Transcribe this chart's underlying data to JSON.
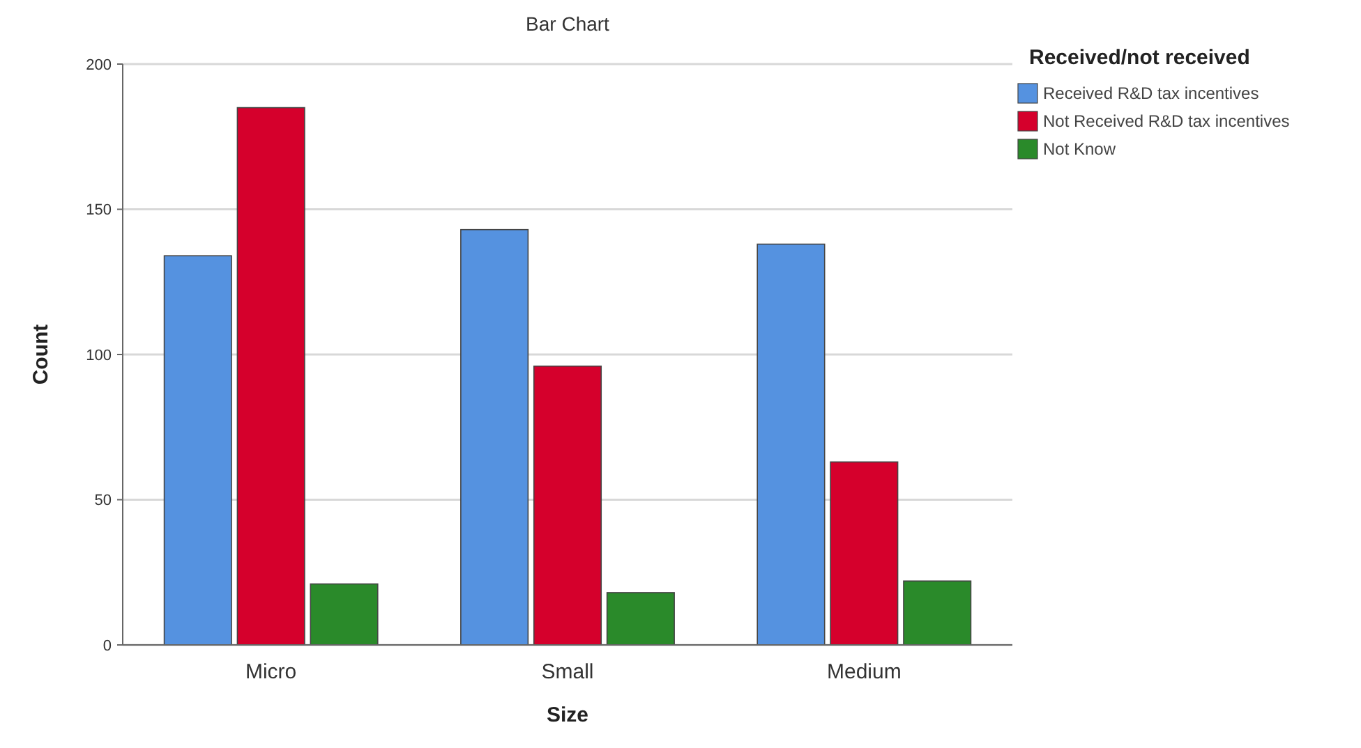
{
  "chart_data": {
    "type": "bar",
    "title": "Bar Chart",
    "xlabel": "Size",
    "ylabel": "Count",
    "legend_title": "Received/not received",
    "categories": [
      "Micro",
      "Small",
      "Medium"
    ],
    "series": [
      {
        "name": "Received R&D tax incentives",
        "color": "#5592e0",
        "values": [
          134,
          143,
          138
        ]
      },
      {
        "name": "Not Received R&D tax incentives",
        "color": "#d5002c",
        "values": [
          185,
          96,
          63
        ]
      },
      {
        "name": "Not Know",
        "color": "#2a8a2a",
        "values": [
          21,
          18,
          22
        ]
      }
    ],
    "ylim": [
      0,
      200
    ],
    "yticks": [
      0,
      50,
      100,
      150,
      200
    ],
    "grid": "y",
    "legend": "top right"
  }
}
